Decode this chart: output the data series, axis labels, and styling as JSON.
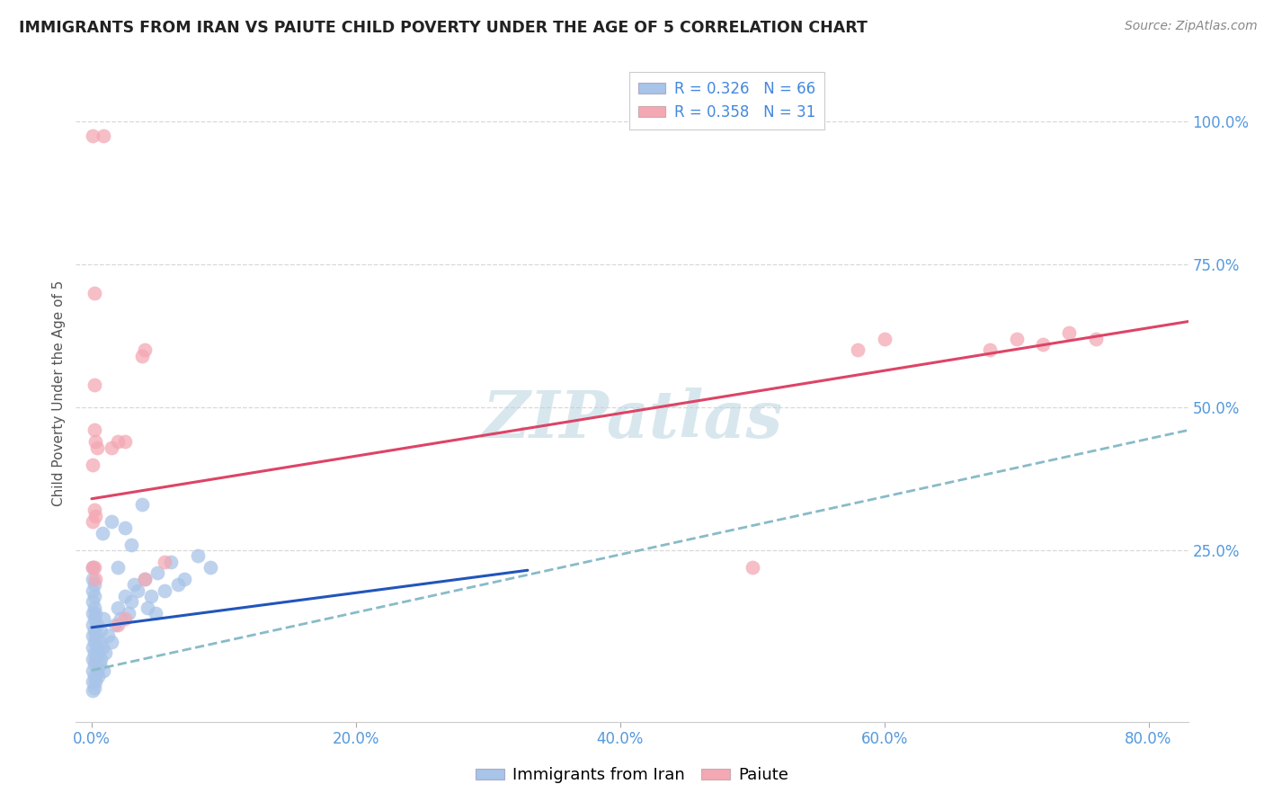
{
  "title": "IMMIGRANTS FROM IRAN VS PAIUTE CHILD POVERTY UNDER THE AGE OF 5 CORRELATION CHART",
  "source": "Source: ZipAtlas.com",
  "ylabel_label": "Child Poverty Under the Age of 5",
  "x_tick_labels": [
    "0.0%",
    "20.0%",
    "40.0%",
    "60.0%",
    "80.0%"
  ],
  "x_tick_vals": [
    0.0,
    0.2,
    0.4,
    0.6,
    0.8
  ],
  "y_tick_labels": [
    "25.0%",
    "50.0%",
    "75.0%",
    "100.0%"
  ],
  "y_tick_vals": [
    0.25,
    0.5,
    0.75,
    1.0
  ],
  "xlim": [
    -0.012,
    0.83
  ],
  "ylim": [
    -0.05,
    1.1
  ],
  "blue_color": "#a8c4e8",
  "pink_color": "#f4a8b4",
  "blue_line_color": "#2255bb",
  "pink_line_color": "#dd4466",
  "dashed_line_color": "#88bbc8",
  "watermark": "ZIPatlas",
  "grid_color": "#d8d8d8",
  "blue_scatter": [
    [
      0.001,
      0.005
    ],
    [
      0.001,
      0.02
    ],
    [
      0.001,
      0.04
    ],
    [
      0.001,
      0.06
    ],
    [
      0.001,
      0.08
    ],
    [
      0.001,
      0.1
    ],
    [
      0.001,
      0.12
    ],
    [
      0.001,
      0.14
    ],
    [
      0.001,
      0.16
    ],
    [
      0.001,
      0.18
    ],
    [
      0.001,
      0.2
    ],
    [
      0.001,
      0.22
    ],
    [
      0.002,
      0.01
    ],
    [
      0.002,
      0.03
    ],
    [
      0.002,
      0.05
    ],
    [
      0.002,
      0.07
    ],
    [
      0.002,
      0.09
    ],
    [
      0.002,
      0.11
    ],
    [
      0.002,
      0.13
    ],
    [
      0.002,
      0.15
    ],
    [
      0.002,
      0.17
    ],
    [
      0.002,
      0.19
    ],
    [
      0.003,
      0.02
    ],
    [
      0.003,
      0.06
    ],
    [
      0.003,
      0.1
    ],
    [
      0.003,
      0.14
    ],
    [
      0.004,
      0.04
    ],
    [
      0.004,
      0.08
    ],
    [
      0.004,
      0.12
    ],
    [
      0.005,
      0.03
    ],
    [
      0.005,
      0.07
    ],
    [
      0.006,
      0.05
    ],
    [
      0.006,
      0.09
    ],
    [
      0.007,
      0.06
    ],
    [
      0.007,
      0.11
    ],
    [
      0.008,
      0.08
    ],
    [
      0.008,
      0.28
    ],
    [
      0.009,
      0.04
    ],
    [
      0.009,
      0.13
    ],
    [
      0.01,
      0.07
    ],
    [
      0.012,
      0.1
    ],
    [
      0.015,
      0.09
    ],
    [
      0.015,
      0.3
    ],
    [
      0.018,
      0.12
    ],
    [
      0.02,
      0.15
    ],
    [
      0.02,
      0.22
    ],
    [
      0.022,
      0.13
    ],
    [
      0.025,
      0.17
    ],
    [
      0.025,
      0.29
    ],
    [
      0.028,
      0.14
    ],
    [
      0.03,
      0.16
    ],
    [
      0.03,
      0.26
    ],
    [
      0.032,
      0.19
    ],
    [
      0.035,
      0.18
    ],
    [
      0.038,
      0.33
    ],
    [
      0.04,
      0.2
    ],
    [
      0.042,
      0.15
    ],
    [
      0.045,
      0.17
    ],
    [
      0.048,
      0.14
    ],
    [
      0.05,
      0.21
    ],
    [
      0.055,
      0.18
    ],
    [
      0.06,
      0.23
    ],
    [
      0.065,
      0.19
    ],
    [
      0.07,
      0.2
    ],
    [
      0.08,
      0.24
    ],
    [
      0.09,
      0.22
    ]
  ],
  "pink_scatter": [
    [
      0.001,
      0.975
    ],
    [
      0.009,
      0.975
    ],
    [
      0.002,
      0.7
    ],
    [
      0.002,
      0.54
    ],
    [
      0.003,
      0.44
    ],
    [
      0.004,
      0.43
    ],
    [
      0.001,
      0.4
    ],
    [
      0.002,
      0.46
    ],
    [
      0.001,
      0.3
    ],
    [
      0.002,
      0.32
    ],
    [
      0.003,
      0.31
    ],
    [
      0.001,
      0.22
    ],
    [
      0.002,
      0.22
    ],
    [
      0.003,
      0.2
    ],
    [
      0.02,
      0.44
    ],
    [
      0.025,
      0.44
    ],
    [
      0.015,
      0.43
    ],
    [
      0.038,
      0.59
    ],
    [
      0.04,
      0.6
    ],
    [
      0.02,
      0.12
    ],
    [
      0.025,
      0.13
    ],
    [
      0.04,
      0.2
    ],
    [
      0.055,
      0.23
    ],
    [
      0.5,
      0.22
    ],
    [
      0.58,
      0.6
    ],
    [
      0.6,
      0.62
    ],
    [
      0.68,
      0.6
    ],
    [
      0.7,
      0.62
    ],
    [
      0.72,
      0.61
    ],
    [
      0.74,
      0.63
    ],
    [
      0.76,
      0.62
    ]
  ],
  "blue_trendline_x": [
    0.0,
    0.33
  ],
  "blue_trendline_y": [
    0.115,
    0.215
  ],
  "dashed_trendline_x": [
    0.0,
    0.83
  ],
  "dashed_trendline_y": [
    0.04,
    0.46
  ],
  "pink_trendline_x": [
    0.0,
    0.83
  ],
  "pink_trendline_y": [
    0.34,
    0.65
  ]
}
